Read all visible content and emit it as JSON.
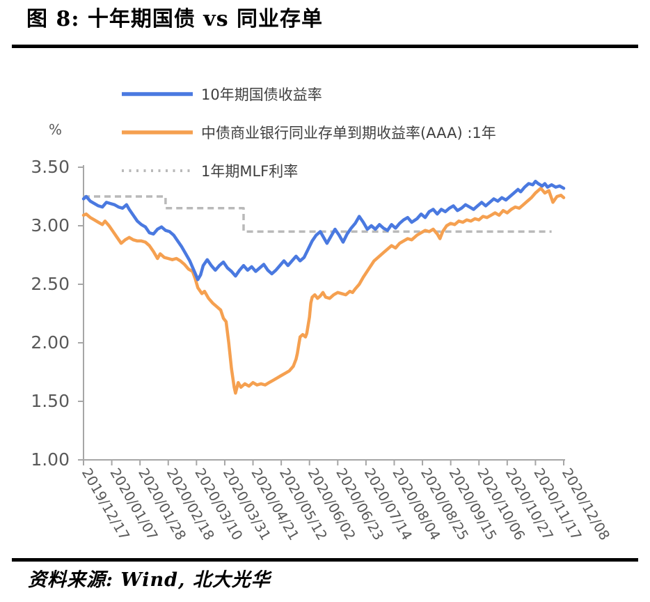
{
  "header": {
    "title": "图 8: 十年期国债 vs 同业存单"
  },
  "footer": {
    "source_label": "资料来源: Wind, 北大光华"
  },
  "chart_data": {
    "type": "line",
    "title": "十年期国债 vs 同业存单",
    "unit": "%",
    "grid": false,
    "legend_position": "top-left",
    "x_unit": "days since 2019/12/17",
    "x_start": "2019/12/17",
    "x_end": "2020/12/08",
    "x_tick_interval_days": 21,
    "x_day_span": 357,
    "x_tick_labels": [
      "2019/12/17",
      "2020/01/07",
      "2020/01/28",
      "2020/02/18",
      "2020/03/10",
      "2020/03/31",
      "2020/04/21",
      "2020/05/12",
      "2020/06/02",
      "2020/06/23",
      "2020/07/14",
      "2020/08/04",
      "2020/08/25",
      "2020/09/15",
      "2020/10/06",
      "2020/10/27",
      "2020/11/17",
      "2020/12/08"
    ],
    "ylim": [
      1.0,
      3.5
    ],
    "y_ticks": [
      3.5,
      3.0,
      2.5,
      2.0,
      1.5,
      1.0
    ],
    "y_tick_labels": [
      "3.50",
      "3.00",
      "2.50",
      "2.00",
      "1.50",
      "1.00"
    ],
    "colors": {
      "treasury": "#4a79e0",
      "ncd": "#f5a050",
      "mlf": "#b9b9b9",
      "axis": "#a6a6a6",
      "tick_text": "#595959",
      "legend_text": "#3f3f3f"
    },
    "series": [
      {
        "id": "treasury10y",
        "name": "10年期国债收益率",
        "color": "#4a79e0",
        "style": "solid",
        "points": [
          [
            0,
            3.23
          ],
          [
            2,
            3.25
          ],
          [
            5,
            3.21
          ],
          [
            8,
            3.19
          ],
          [
            11,
            3.17
          ],
          [
            14,
            3.16
          ],
          [
            17,
            3.2
          ],
          [
            20,
            3.19
          ],
          [
            23,
            3.18
          ],
          [
            26,
            3.16
          ],
          [
            29,
            3.15
          ],
          [
            32,
            3.18
          ],
          [
            34,
            3.14
          ],
          [
            37,
            3.09
          ],
          [
            40,
            3.04
          ],
          [
            43,
            3.01
          ],
          [
            46,
            2.99
          ],
          [
            49,
            2.94
          ],
          [
            52,
            2.93
          ],
          [
            55,
            2.97
          ],
          [
            58,
            2.99
          ],
          [
            61,
            2.96
          ],
          [
            64,
            2.95
          ],
          [
            67,
            2.92
          ],
          [
            70,
            2.87
          ],
          [
            73,
            2.82
          ],
          [
            76,
            2.76
          ],
          [
            79,
            2.7
          ],
          [
            82,
            2.62
          ],
          [
            85,
            2.54
          ],
          [
            87,
            2.58
          ],
          [
            89,
            2.66
          ],
          [
            92,
            2.71
          ],
          [
            95,
            2.66
          ],
          [
            98,
            2.62
          ],
          [
            101,
            2.66
          ],
          [
            104,
            2.69
          ],
          [
            107,
            2.64
          ],
          [
            110,
            2.61
          ],
          [
            113,
            2.57
          ],
          [
            116,
            2.62
          ],
          [
            119,
            2.66
          ],
          [
            122,
            2.62
          ],
          [
            125,
            2.65
          ],
          [
            128,
            2.61
          ],
          [
            131,
            2.64
          ],
          [
            134,
            2.67
          ],
          [
            137,
            2.62
          ],
          [
            140,
            2.59
          ],
          [
            143,
            2.62
          ],
          [
            146,
            2.66
          ],
          [
            149,
            2.7
          ],
          [
            152,
            2.66
          ],
          [
            155,
            2.7
          ],
          [
            158,
            2.74
          ],
          [
            161,
            2.7
          ],
          [
            164,
            2.73
          ],
          [
            167,
            2.8
          ],
          [
            170,
            2.87
          ],
          [
            173,
            2.92
          ],
          [
            176,
            2.95
          ],
          [
            179,
            2.89
          ],
          [
            181,
            2.85
          ],
          [
            184,
            2.91
          ],
          [
            187,
            2.97
          ],
          [
            190,
            2.92
          ],
          [
            193,
            2.86
          ],
          [
            196,
            2.93
          ],
          [
            199,
            2.98
          ],
          [
            202,
            3.02
          ],
          [
            205,
            3.08
          ],
          [
            208,
            3.03
          ],
          [
            211,
            2.97
          ],
          [
            214,
            3.0
          ],
          [
            217,
            2.97
          ],
          [
            220,
            3.01
          ],
          [
            223,
            2.98
          ],
          [
            226,
            2.96
          ],
          [
            229,
            3.01
          ],
          [
            232,
            2.98
          ],
          [
            235,
            3.02
          ],
          [
            238,
            3.05
          ],
          [
            241,
            3.07
          ],
          [
            244,
            3.03
          ],
          [
            248,
            3.06
          ],
          [
            251,
            3.1
          ],
          [
            254,
            3.07
          ],
          [
            257,
            3.12
          ],
          [
            260,
            3.14
          ],
          [
            263,
            3.1
          ],
          [
            266,
            3.14
          ],
          [
            269,
            3.12
          ],
          [
            272,
            3.15
          ],
          [
            275,
            3.17
          ],
          [
            278,
            3.13
          ],
          [
            281,
            3.15
          ],
          [
            284,
            3.18
          ],
          [
            287,
            3.16
          ],
          [
            290,
            3.14
          ],
          [
            293,
            3.17
          ],
          [
            296,
            3.2
          ],
          [
            299,
            3.17
          ],
          [
            302,
            3.2
          ],
          [
            305,
            3.23
          ],
          [
            308,
            3.21
          ],
          [
            311,
            3.24
          ],
          [
            314,
            3.22
          ],
          [
            317,
            3.25
          ],
          [
            320,
            3.28
          ],
          [
            323,
            3.31
          ],
          [
            325,
            3.29
          ],
          [
            328,
            3.33
          ],
          [
            331,
            3.36
          ],
          [
            334,
            3.35
          ],
          [
            336,
            3.38
          ],
          [
            338,
            3.36
          ],
          [
            341,
            3.34
          ],
          [
            343,
            3.36
          ],
          [
            345,
            3.33
          ],
          [
            348,
            3.35
          ],
          [
            351,
            3.33
          ],
          [
            354,
            3.34
          ],
          [
            357,
            3.32
          ]
        ]
      },
      {
        "id": "ncd1y",
        "name": "中债商业银行同业存单到期收益率(AAA) :1年",
        "color": "#f5a050",
        "style": "solid",
        "points": [
          [
            0,
            3.09
          ],
          [
            2,
            3.1
          ],
          [
            5,
            3.07
          ],
          [
            8,
            3.05
          ],
          [
            11,
            3.03
          ],
          [
            14,
            3.01
          ],
          [
            16,
            3.04
          ],
          [
            19,
            3.0
          ],
          [
            22,
            2.95
          ],
          [
            25,
            2.9
          ],
          [
            28,
            2.85
          ],
          [
            31,
            2.88
          ],
          [
            34,
            2.9
          ],
          [
            37,
            2.88
          ],
          [
            40,
            2.87
          ],
          [
            43,
            2.87
          ],
          [
            46,
            2.86
          ],
          [
            49,
            2.83
          ],
          [
            52,
            2.78
          ],
          [
            55,
            2.72
          ],
          [
            57,
            2.76
          ],
          [
            60,
            2.73
          ],
          [
            63,
            2.72
          ],
          [
            66,
            2.71
          ],
          [
            69,
            2.72
          ],
          [
            72,
            2.7
          ],
          [
            75,
            2.67
          ],
          [
            78,
            2.63
          ],
          [
            81,
            2.61
          ],
          [
            83,
            2.55
          ],
          [
            85,
            2.47
          ],
          [
            88,
            2.42
          ],
          [
            90,
            2.44
          ],
          [
            93,
            2.38
          ],
          [
            96,
            2.34
          ],
          [
            99,
            2.31
          ],
          [
            102,
            2.28
          ],
          [
            104,
            2.21
          ],
          [
            106,
            2.18
          ],
          [
            108,
            2.0
          ],
          [
            110,
            1.78
          ],
          [
            112,
            1.62
          ],
          [
            113,
            1.57
          ],
          [
            115,
            1.66
          ],
          [
            117,
            1.62
          ],
          [
            120,
            1.65
          ],
          [
            123,
            1.63
          ],
          [
            126,
            1.66
          ],
          [
            129,
            1.64
          ],
          [
            132,
            1.65
          ],
          [
            135,
            1.64
          ],
          [
            138,
            1.66
          ],
          [
            141,
            1.68
          ],
          [
            144,
            1.7
          ],
          [
            147,
            1.72
          ],
          [
            150,
            1.74
          ],
          [
            153,
            1.76
          ],
          [
            156,
            1.8
          ],
          [
            158,
            1.86
          ],
          [
            159,
            1.91
          ],
          [
            160,
            1.98
          ],
          [
            161,
            2.05
          ],
          [
            163,
            2.07
          ],
          [
            165,
            2.05
          ],
          [
            166,
            2.08
          ],
          [
            168,
            2.22
          ],
          [
            169,
            2.34
          ],
          [
            170,
            2.39
          ],
          [
            172,
            2.41
          ],
          [
            174,
            2.38
          ],
          [
            176,
            2.4
          ],
          [
            178,
            2.43
          ],
          [
            180,
            2.39
          ],
          [
            183,
            2.38
          ],
          [
            186,
            2.41
          ],
          [
            189,
            2.43
          ],
          [
            192,
            2.42
          ],
          [
            195,
            2.41
          ],
          [
            198,
            2.44
          ],
          [
            200,
            2.43
          ],
          [
            202,
            2.46
          ],
          [
            205,
            2.5
          ],
          [
            208,
            2.56
          ],
          [
            212,
            2.63
          ],
          [
            216,
            2.7
          ],
          [
            220,
            2.74
          ],
          [
            223,
            2.77
          ],
          [
            226,
            2.8
          ],
          [
            229,
            2.83
          ],
          [
            232,
            2.81
          ],
          [
            235,
            2.85
          ],
          [
            238,
            2.87
          ],
          [
            241,
            2.89
          ],
          [
            244,
            2.88
          ],
          [
            248,
            2.92
          ],
          [
            251,
            2.94
          ],
          [
            254,
            2.96
          ],
          [
            257,
            2.95
          ],
          [
            260,
            2.97
          ],
          [
            263,
            2.93
          ],
          [
            265,
            2.89
          ],
          [
            267,
            2.95
          ],
          [
            270,
            3.0
          ],
          [
            273,
            3.02
          ],
          [
            276,
            3.01
          ],
          [
            279,
            3.04
          ],
          [
            282,
            3.03
          ],
          [
            285,
            3.05
          ],
          [
            288,
            3.04
          ],
          [
            291,
            3.06
          ],
          [
            294,
            3.05
          ],
          [
            297,
            3.08
          ],
          [
            300,
            3.07
          ],
          [
            303,
            3.09
          ],
          [
            306,
            3.11
          ],
          [
            309,
            3.09
          ],
          [
            312,
            3.13
          ],
          [
            315,
            3.11
          ],
          [
            318,
            3.14
          ],
          [
            321,
            3.16
          ],
          [
            324,
            3.15
          ],
          [
            327,
            3.18
          ],
          [
            330,
            3.21
          ],
          [
            333,
            3.24
          ],
          [
            336,
            3.28
          ],
          [
            338,
            3.3
          ],
          [
            340,
            3.32
          ],
          [
            343,
            3.28
          ],
          [
            346,
            3.3
          ],
          [
            349,
            3.2
          ],
          [
            352,
            3.25
          ],
          [
            355,
            3.26
          ],
          [
            357,
            3.24
          ]
        ]
      },
      {
        "id": "mlf1y",
        "name": "1年期MLF利率",
        "color": "#b9b9b9",
        "style": "dashed",
        "points": [
          [
            0,
            3.25
          ],
          [
            61,
            3.25
          ],
          [
            61,
            3.15
          ],
          [
            119,
            3.15
          ],
          [
            119,
            2.95
          ],
          [
            348,
            2.95
          ]
        ]
      }
    ]
  }
}
